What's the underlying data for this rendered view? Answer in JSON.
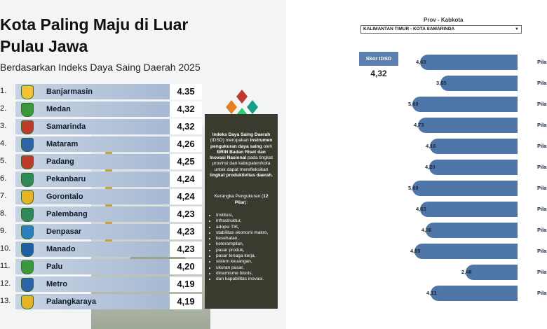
{
  "infographic": {
    "title": "Kota Paling Maju di Luar Pulau Jawa",
    "subtitle": "Berdasarkan Indeks Daya Saing Daerah 2025",
    "rankings": [
      {
        "rank": "1.",
        "city": "Banjarmasin",
        "score": "4.35",
        "crest_color": "#f2c230"
      },
      {
        "rank": "2.",
        "city": "Medan",
        "score": "4,32",
        "crest_color": "#3a9a3a"
      },
      {
        "rank": "3.",
        "city": "Samarinda",
        "score": "4,32",
        "crest_color": "#c0392b"
      },
      {
        "rank": "4.",
        "city": "Mataram",
        "score": "4,26",
        "crest_color": "#2f64a8"
      },
      {
        "rank": "5.",
        "city": "Padang",
        "score": "4,25",
        "crest_color": "#c0392b"
      },
      {
        "rank": "6.",
        "city": "Pekanbaru",
        "score": "4,24",
        "crest_color": "#2e8b57"
      },
      {
        "rank": "7.",
        "city": "Gorontalo",
        "score": "4,24",
        "crest_color": "#e6b422"
      },
      {
        "rank": "8.",
        "city": "Palembang",
        "score": "4,23",
        "crest_color": "#2e8b57"
      },
      {
        "rank": "9.",
        "city": "Denpasar",
        "score": "4,23",
        "crest_color": "#2a7fc1"
      },
      {
        "rank": "10.",
        "city": "Manado",
        "score": "4,23",
        "crest_color": "#1f5fa8"
      },
      {
        "rank": "11.",
        "city": "Palu",
        "score": "4,20",
        "crest_color": "#3a9a3a"
      },
      {
        "rank": "12.",
        "city": "Metro",
        "score": "4,19",
        "crest_color": "#2f64a8"
      },
      {
        "rank": "13.",
        "city": "Palangkaraya",
        "score": "4,19",
        "crest_color": "#e6b422"
      }
    ],
    "info": {
      "title": "Indeks Daya Saing Daerah",
      "body_1": "(IDSD) merupakan",
      "body_2": "instrumen pengukuran daya saing",
      "body_3": "oleh",
      "body_4": "BRIN Badan Riset dan Inovasi Nasional",
      "body_5": "pada tingkat provinsi dan kabupaten/kota untuk dapat merefleksikan",
      "body_6": "tingkat produktivitas daerah.",
      "sub_1": "Kerangka Pengukuran (",
      "sub_2": "12 Pilar",
      "sub_3": "):",
      "pillars": [
        "Institusi,",
        "infrastruktur,",
        "adopsi TIK,",
        "stabilitas ekonomi makro,",
        "kesehatan,",
        "keterampilan,",
        "pasar produk,",
        "pasar tenaga kerja,",
        "sistem keuangan,",
        "ukuran pasar,",
        "dinamisme bisnis,",
        "dan kapabilitas inovasi."
      ]
    },
    "colors": {
      "bar": "#a7b9d3",
      "info_bg": "#3b3a2f",
      "logo": [
        "#c0392b",
        "#e67e22",
        "#16a085",
        "#2ecc71"
      ]
    }
  },
  "dashboard": {
    "filter_label": "Prov - Kabkota",
    "filter_value": "KALIMANTAN TIMUR - KOTA SAMARINDA",
    "skor_label": "Skor IDSD",
    "skor_value": "4,32",
    "pillars": [
      {
        "value": "4,63",
        "label": "Pilar"
      },
      {
        "value": "3,65",
        "label": "Pilar"
      },
      {
        "value": "5,00",
        "label": "Pilar"
      },
      {
        "value": "4,73",
        "label": "Pilar"
      },
      {
        "value": "4,16",
        "label": "Pilar"
      },
      {
        "value": "4,20",
        "label": "Pilar"
      },
      {
        "value": "5,00",
        "label": "Pilar"
      },
      {
        "value": "4,63",
        "label": "Pilar"
      },
      {
        "value": "4,36",
        "label": "Pilar"
      },
      {
        "value": "4,89",
        "label": "Pilar"
      },
      {
        "value": "2,48",
        "label": "Pilar"
      },
      {
        "value": "4,13",
        "label": "Pilar"
      }
    ],
    "bar_color": "#4f76a8"
  }
}
